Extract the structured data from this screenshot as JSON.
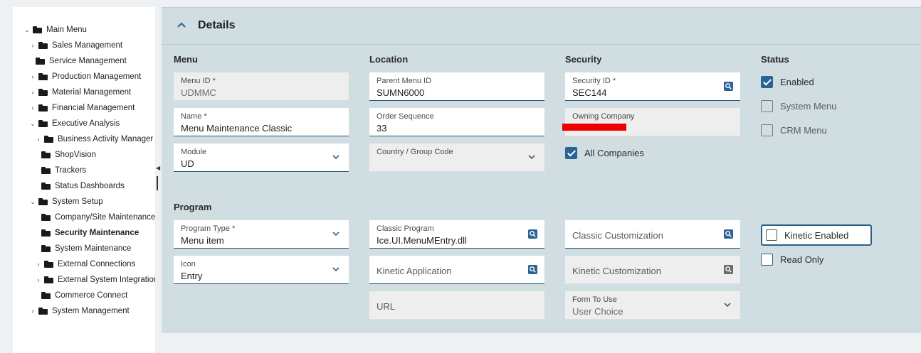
{
  "tree": {
    "items": [
      {
        "label": "Main Menu",
        "chevron": "expanded",
        "level": 0
      },
      {
        "label": "Sales Management",
        "chevron": "collapsed",
        "level": 1
      },
      {
        "label": "Service Management",
        "chevron": "none",
        "level": 1
      },
      {
        "label": "Production Management",
        "chevron": "collapsed",
        "level": 1
      },
      {
        "label": "Material Management",
        "chevron": "collapsed",
        "level": 1
      },
      {
        "label": "Financial Management",
        "chevron": "collapsed",
        "level": 1
      },
      {
        "label": "Executive Analysis",
        "chevron": "expanded",
        "level": 1
      },
      {
        "label": "Business Activity Manager",
        "chevron": "collapsed",
        "level": 2
      },
      {
        "label": "ShopVision",
        "chevron": "none",
        "level": 2
      },
      {
        "label": "Trackers",
        "chevron": "none",
        "level": 2
      },
      {
        "label": "Status Dashboards",
        "chevron": "none",
        "level": 2
      },
      {
        "label": "System Setup",
        "chevron": "expanded",
        "level": 1
      },
      {
        "label": "Company/Site Maintenance",
        "chevron": "none",
        "level": 2
      },
      {
        "label": "Security Maintenance",
        "chevron": "none",
        "level": 2,
        "selected": true
      },
      {
        "label": "System Maintenance",
        "chevron": "none",
        "level": 2
      },
      {
        "label": "External Connections",
        "chevron": "collapsed",
        "level": 2
      },
      {
        "label": "External System Integration",
        "chevron": "collapsed",
        "level": 2
      },
      {
        "label": "Commerce Connect",
        "chevron": "none",
        "level": 2
      },
      {
        "label": "System Management",
        "chevron": "collapsed",
        "level": 1
      }
    ]
  },
  "details": {
    "title": "Details",
    "collapse_icon": "chevron-up-icon",
    "sections": {
      "menu": "Menu",
      "location": "Location",
      "security": "Security",
      "status": "Status",
      "program": "Program"
    },
    "fields": {
      "menu_id": {
        "label": "Menu ID *",
        "value": "UDMMC"
      },
      "name": {
        "label": "Name *",
        "value": "Menu Maintenance Classic"
      },
      "module": {
        "label": "Module",
        "value": "UD"
      },
      "parent_menu_id": {
        "label": "Parent Menu ID",
        "value": "SUMN6000"
      },
      "order_sequence": {
        "label": "Order Sequence",
        "value": "33"
      },
      "country_group_code": {
        "label": "Country / Group Code",
        "value": ""
      },
      "security_id": {
        "label": "Security ID *",
        "value": "SEC144"
      },
      "owning_company": {
        "label": "Owning Company",
        "value": ""
      },
      "program_type": {
        "label": "Program Type *",
        "value": "Menu item"
      },
      "icon": {
        "label": "Icon",
        "value": "Entry"
      },
      "classic_program": {
        "label": "Classic Program",
        "value": "Ice.UI.MenuMEntry.dll"
      },
      "kinetic_application": {
        "placeholder": "Kinetic Application"
      },
      "url": {
        "placeholder": "URL"
      },
      "classic_customization": {
        "placeholder": "Classic Customization"
      },
      "kinetic_customization": {
        "placeholder": "Kinetic Customization"
      },
      "form_to_use": {
        "label": "Form To Use",
        "value": "User Choice"
      }
    },
    "checkboxes": {
      "all_companies": {
        "label": "All Companies",
        "checked": true
      },
      "enabled": {
        "label": "Enabled",
        "checked": true
      },
      "system_menu": {
        "label": "System Menu",
        "checked": false
      },
      "crm_menu": {
        "label": "CRM Menu",
        "checked": false
      },
      "kinetic_enabled": {
        "label": "Kinetic Enabled",
        "checked": false
      },
      "read_only": {
        "label": "Read Only",
        "checked": false
      }
    }
  },
  "colors": {
    "accent": "#2a6496",
    "panel_bg": "#d0dde1",
    "redaction": "#ee0000"
  }
}
